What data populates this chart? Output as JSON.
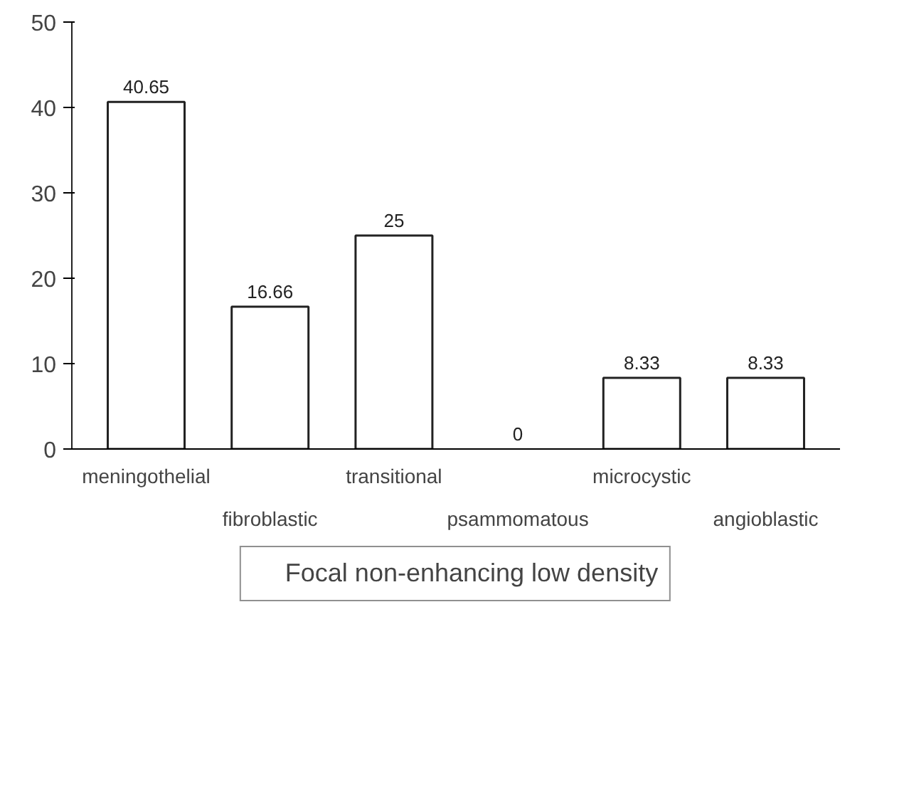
{
  "chart_data": {
    "type": "bar",
    "categories": [
      "meningothelial",
      "fibroblastic",
      "transitional",
      "psammomatous",
      "microcystic",
      "angioblastic"
    ],
    "series": [
      {
        "name": "Focal non-enhancing low density",
        "color": "#ffffff",
        "values": [
          40.65,
          16.66,
          25,
          0,
          8.33,
          8.33
        ]
      }
    ],
    "ylim": [
      0,
      50
    ],
    "yticks": [
      0,
      10,
      20,
      30,
      40,
      50
    ],
    "data_labels": true,
    "grid": false,
    "legend": "bottom"
  }
}
